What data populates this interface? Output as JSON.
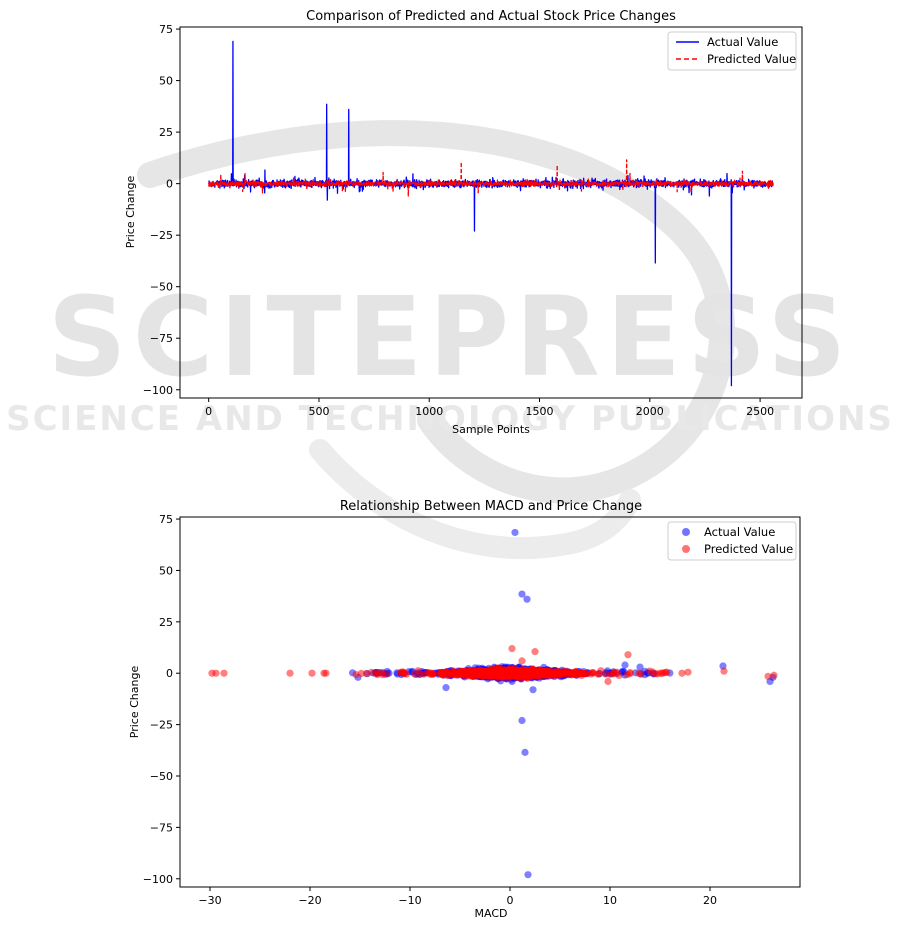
{
  "watermark": {
    "main": "SCITEPRESS",
    "sub": "SCIENCE AND TECHNOLOGY PUBLICATIONS"
  },
  "chart_data": [
    {
      "type": "line",
      "title": "Comparison of Predicted and Actual Stock Price Changes",
      "xlabel": "Sample Points",
      "ylabel": "Price Change",
      "xlim": [
        -130,
        2690
      ],
      "ylim": [
        -104,
        76
      ],
      "xticks": [
        0,
        500,
        1000,
        1500,
        2000,
        2500
      ],
      "yticks": [
        75,
        50,
        25,
        0,
        -25,
        -50,
        -75,
        -100
      ],
      "legend_position": "top-right",
      "series": [
        {
          "name": "Actual Value",
          "color": "#0000ff",
          "style": "solid",
          "spikes": [
            {
              "x": 110,
              "y": 69
            },
            {
              "x": 535,
              "y": 38.5
            },
            {
              "x": 538,
              "y": -8
            },
            {
              "x": 635,
              "y": 36
            },
            {
              "x": 1205,
              "y": -23
            },
            {
              "x": 2025,
              "y": -38.5
            },
            {
              "x": 2370,
              "y": -98
            },
            {
              "x": 2270,
              "y": -6
            }
          ]
        },
        {
          "name": "Predicted Value",
          "color": "#ff0000",
          "style": "dashed",
          "spikes": [
            {
              "x": 1145,
              "y": 10.5
            },
            {
              "x": 1580,
              "y": 9
            },
            {
              "x": 1895,
              "y": 11.5
            },
            {
              "x": 1910,
              "y": 5
            },
            {
              "x": 2420,
              "y": 6
            },
            {
              "x": 905,
              "y": -6
            },
            {
              "x": 55,
              "y": 4
            },
            {
              "x": 620,
              "y": -4
            }
          ]
        }
      ]
    },
    {
      "type": "scatter",
      "title": "Relationship Between MACD and Price Change",
      "xlabel": "MACD",
      "ylabel": "Price Change",
      "xlim": [
        -33,
        29
      ],
      "ylim": [
        -104,
        76
      ],
      "xticks": [
        -30,
        -20,
        -10,
        0,
        10,
        20
      ],
      "yticks": [
        75,
        50,
        25,
        0,
        -25,
        -50,
        -75,
        -100
      ],
      "legend_position": "top-right",
      "series": [
        {
          "name": "Actual Value",
          "color": "#0000ff",
          "outliers": [
            {
              "x": 0.5,
              "y": 68.5
            },
            {
              "x": 1.2,
              "y": 38.5
            },
            {
              "x": 1.7,
              "y": 36
            },
            {
              "x": 1.2,
              "y": -23
            },
            {
              "x": 1.5,
              "y": -38.5
            },
            {
              "x": 1.8,
              "y": -98
            },
            {
              "x": 21.3,
              "y": 3.5
            },
            {
              "x": 26,
              "y": -4
            },
            {
              "x": 26.3,
              "y": -2
            },
            {
              "x": -6.4,
              "y": -7
            },
            {
              "x": 2.3,
              "y": -8
            },
            {
              "x": -15.2,
              "y": -2
            },
            {
              "x": 11.5,
              "y": 4
            },
            {
              "x": 13,
              "y": 3
            }
          ]
        },
        {
          "name": "Predicted Value",
          "color": "#ff0000",
          "outliers": [
            {
              "x": 0.2,
              "y": 12
            },
            {
              "x": 2.5,
              "y": 10.5
            },
            {
              "x": 11.8,
              "y": 9
            },
            {
              "x": 21.4,
              "y": 1
            },
            {
              "x": 25.8,
              "y": -1.5
            },
            {
              "x": 26.4,
              "y": -1
            },
            {
              "x": -29.8,
              "y": 0
            },
            {
              "x": -29.4,
              "y": 0
            },
            {
              "x": -28.6,
              "y": 0
            },
            {
              "x": -22,
              "y": 0
            },
            {
              "x": -19.8,
              "y": 0
            },
            {
              "x": -18.6,
              "y": 0
            },
            {
              "x": -18.4,
              "y": 0
            },
            {
              "x": 1.2,
              "y": 6
            },
            {
              "x": 9.8,
              "y": -4
            },
            {
              "x": 17.2,
              "y": 0
            },
            {
              "x": 17.8,
              "y": 0.5
            }
          ]
        }
      ]
    }
  ]
}
